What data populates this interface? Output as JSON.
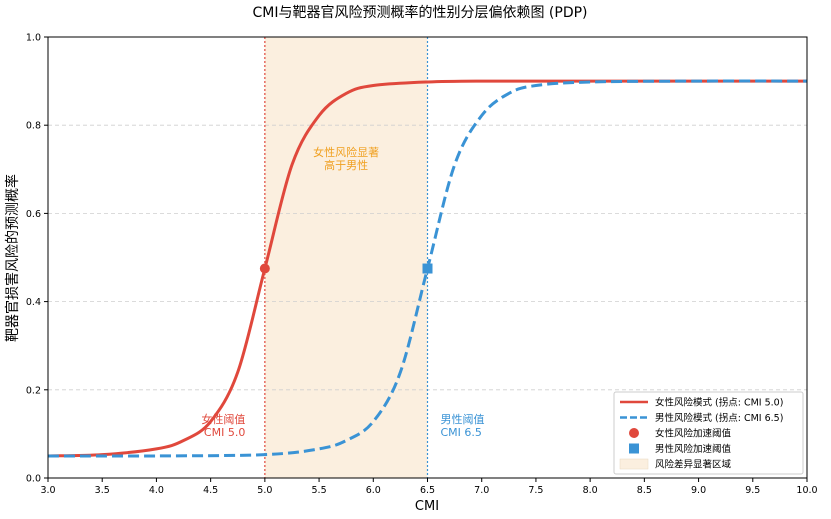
{
  "chart_data": {
    "type": "line",
    "title": "CMI与靶器官风险预测概率的性别分层偏依赖图 (PDP)",
    "xlabel": "CMI",
    "ylabel": "靶器官损害风险的预测概率",
    "xlim": [
      3.0,
      10.0
    ],
    "ylim": [
      0.0,
      1.0
    ],
    "x_ticks": [
      "3.0",
      "3.5",
      "4.0",
      "4.5",
      "5.0",
      "5.5",
      "6.0",
      "6.5",
      "7.0",
      "7.5",
      "8.0",
      "8.5",
      "9.0",
      "9.5",
      "10.0"
    ],
    "y_ticks": [
      "0.0",
      "0.2",
      "0.4",
      "0.6",
      "0.8",
      "1.0"
    ],
    "grid": "y-dashed",
    "legend_position": "bottom-right",
    "series": [
      {
        "name": "女性风险模式 (拐点: CMI 5.0)",
        "style": "solid",
        "color": "#e0483c",
        "x": [
          3.0,
          3.5,
          4.0,
          4.25,
          4.5,
          4.75,
          5.0,
          5.25,
          5.5,
          5.75,
          6.0,
          6.5,
          7.0,
          8.0,
          9.0,
          10.0
        ],
        "y": [
          0.05,
          0.053,
          0.066,
          0.085,
          0.128,
          0.24,
          0.475,
          0.71,
          0.822,
          0.872,
          0.89,
          0.898,
          0.9,
          0.9,
          0.9,
          0.9
        ]
      },
      {
        "name": "男性风险模式 (拐点: CMI 6.5)",
        "style": "dashed",
        "color": "#3a93d5",
        "x": [
          3.0,
          4.0,
          5.0,
          5.5,
          5.75,
          6.0,
          6.25,
          6.5,
          6.75,
          7.0,
          7.25,
          7.5,
          8.0,
          9.0,
          10.0
        ],
        "y": [
          0.05,
          0.05,
          0.053,
          0.066,
          0.085,
          0.128,
          0.24,
          0.475,
          0.71,
          0.822,
          0.872,
          0.89,
          0.898,
          0.9,
          0.9
        ]
      }
    ],
    "markers": [
      {
        "name": "女性风险加速阈值",
        "shape": "circle",
        "color": "#e0483c",
        "x": 5.0,
        "y": 0.475
      },
      {
        "name": "男性风险加速阈值",
        "shape": "square",
        "color": "#3a93d5",
        "x": 6.5,
        "y": 0.475
      }
    ],
    "vlines": [
      {
        "x": 5.0,
        "color": "#e0483c"
      },
      {
        "x": 6.5,
        "color": "#3a93d5"
      }
    ],
    "shaded_region": {
      "name": "风险差异显著区域",
      "x_range": [
        5.0,
        6.5
      ],
      "color": "#fbefdf"
    },
    "annotations": [
      {
        "lines": [
          "女性风险显著",
          "高于男性"
        ],
        "x": 5.75,
        "y": 0.73,
        "color": "#f0a020",
        "align": "middle"
      },
      {
        "lines": [
          "女性阈值",
          "CMI 5.0"
        ],
        "x": 4.82,
        "y": 0.125,
        "color": "#e0483c",
        "align": "end"
      },
      {
        "lines": [
          "男性阈值",
          "CMI 6.5"
        ],
        "x": 6.62,
        "y": 0.125,
        "color": "#3a93d5",
        "align": "start"
      }
    ]
  }
}
